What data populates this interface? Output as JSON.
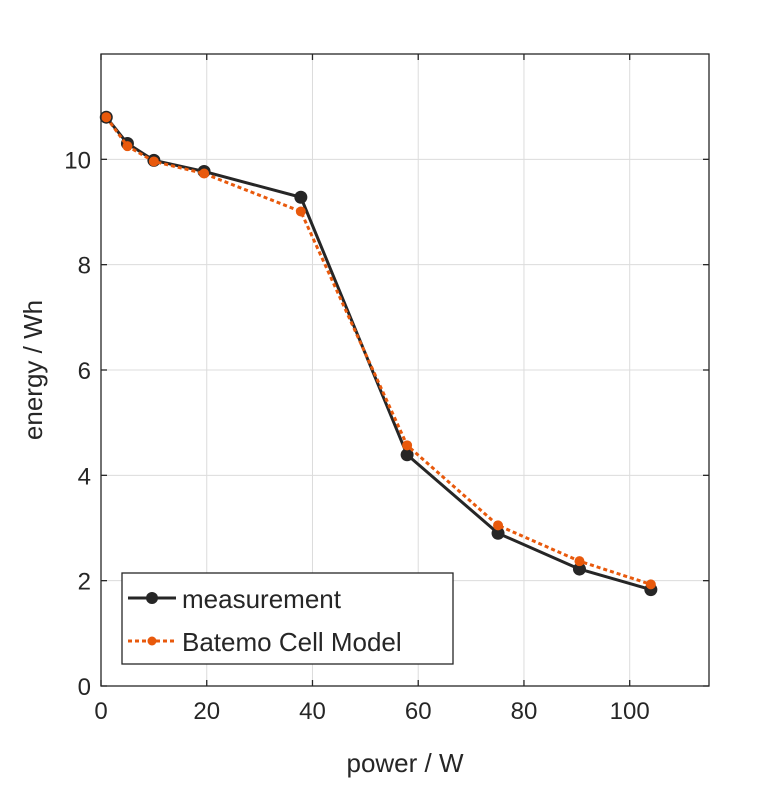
{
  "chart_data": {
    "type": "line",
    "title": "",
    "xlabel": "power / W",
    "ylabel": "energy / Wh",
    "xlim": [
      0,
      115
    ],
    "ylim": [
      0,
      12
    ],
    "xticks": [
      0,
      20,
      40,
      60,
      80,
      100
    ],
    "yticks": [
      0,
      2,
      4,
      6,
      8,
      10
    ],
    "xtick_labels": [
      "0",
      "20",
      "40",
      "60",
      "80",
      "100"
    ],
    "ytick_labels": [
      "0",
      "2",
      "4",
      "6",
      "8",
      "10"
    ],
    "grid": true,
    "legend_placement": "bottom-left",
    "series": [
      {
        "name": "measurement",
        "color": "#262626",
        "style": "solid",
        "x": [
          1,
          5,
          10,
          19.5,
          37.8,
          57.9,
          75.1,
          90.5,
          104
        ],
        "y": [
          10.8,
          10.3,
          9.98,
          9.77,
          9.28,
          4.39,
          2.9,
          2.22,
          1.83
        ]
      },
      {
        "name": "Batemo Cell Model",
        "color": "#e8590c",
        "style": "dotted",
        "x": [
          1,
          5,
          10,
          19.5,
          37.8,
          57.9,
          75.1,
          90.5,
          104
        ],
        "y": [
          10.8,
          10.25,
          9.96,
          9.73,
          9.01,
          4.57,
          3.05,
          2.37,
          1.93
        ]
      }
    ]
  }
}
